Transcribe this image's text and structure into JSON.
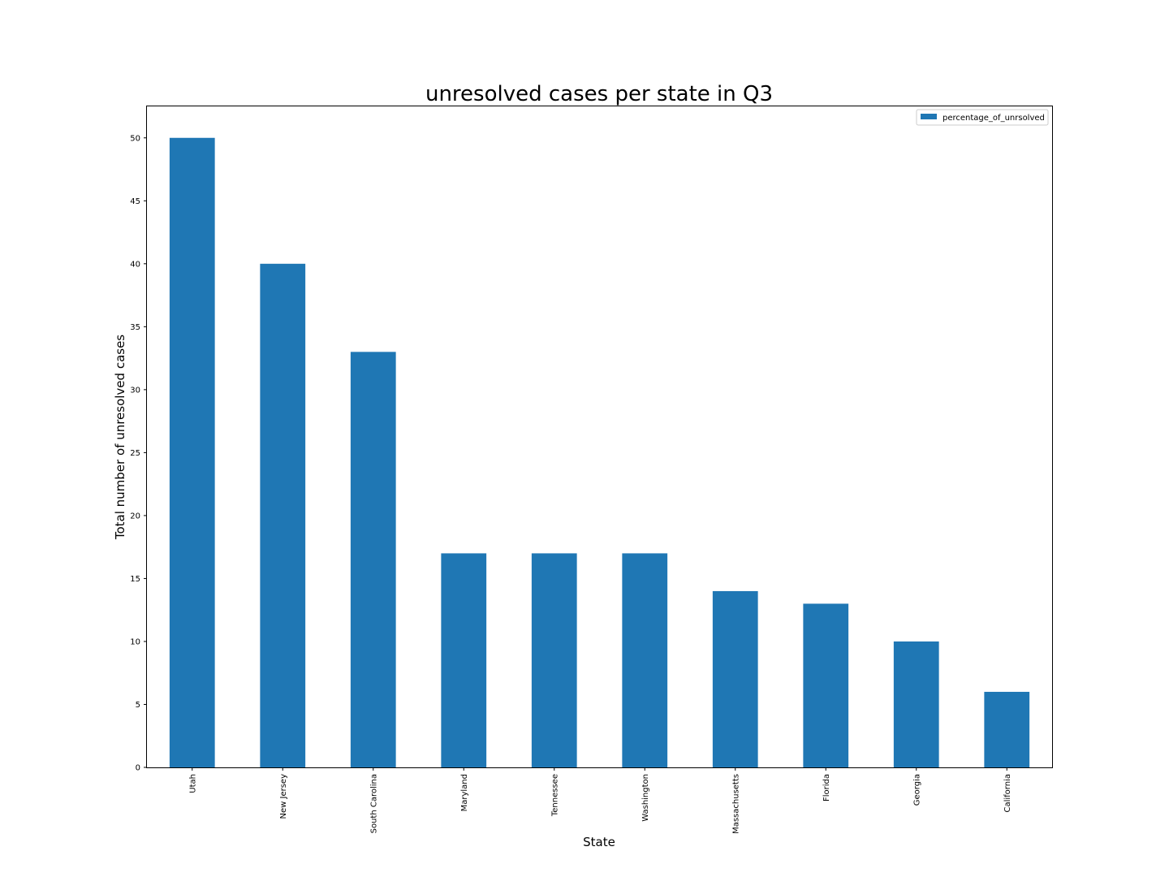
{
  "chart_data": {
    "type": "bar",
    "title": "unresolved cases per state in Q3",
    "xlabel": "State",
    "ylabel": "Total number of unresolved cases",
    "categories": [
      "Utah",
      "New Jersey",
      "South Carolina",
      "Maryland",
      "Tennessee",
      "Washington",
      "Massachusetts",
      "Florida",
      "Georgia",
      "California"
    ],
    "series": [
      {
        "name": "percentage_of_unrsolved",
        "values": [
          50,
          40,
          33,
          17,
          17,
          17,
          14,
          13,
          10,
          6
        ],
        "color": "#1f77b4"
      }
    ],
    "yticks": [
      0,
      5,
      10,
      15,
      20,
      25,
      30,
      35,
      40,
      45,
      50
    ],
    "ylim": [
      0,
      52.5
    ],
    "grid": false,
    "legend_position": "top-right"
  }
}
